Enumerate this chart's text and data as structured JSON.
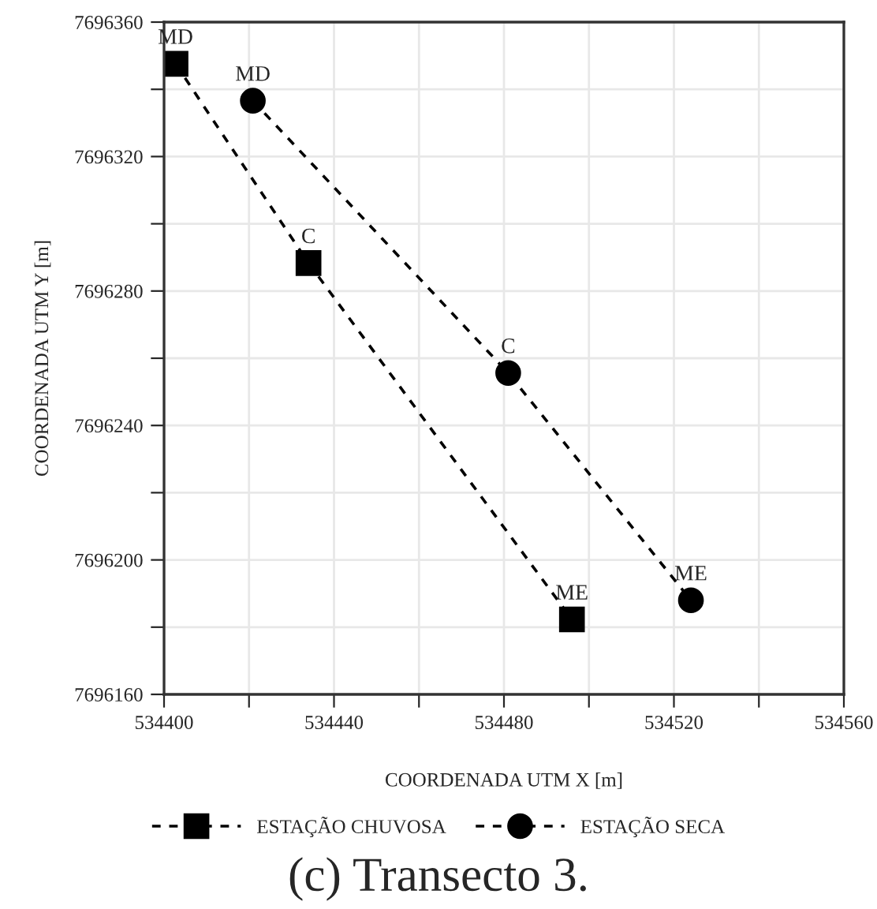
{
  "chart_data": {
    "type": "line",
    "xlabel": "COORDENADA UTM X [m]",
    "ylabel": "COORDENADA UTM Y [m]",
    "series": [
      {
        "name": "ESTAÇÃO CHUVOSA",
        "color": "#000000",
        "marker": "square",
        "line_style": "dashed",
        "x": [
          534402.7,
          534434,
          534496
        ],
        "values": [
          7696347.6,
          7696288.3,
          7696182.3
        ]
      },
      {
        "name": "ESTAÇÃO SECA",
        "color": "#000000",
        "marker": "circle",
        "line_style": "dashed",
        "x": [
          534420.9,
          534481,
          534524
        ],
        "values": [
          7696336.6,
          7696255.6,
          7696188
        ]
      }
    ],
    "xlim": [
      534400,
      534560
    ],
    "xticks": [
      534400,
      {
        "value": 534420,
        "label": null
      },
      534440,
      {
        "value": 534460,
        "label": null
      },
      534480,
      {
        "value": 534500,
        "label": null
      },
      534520,
      {
        "value": 534540,
        "label": null
      },
      534560
    ],
    "ylim": [
      7696160,
      7696360
    ],
    "yticks": [
      7696160,
      {
        "value": 7696180,
        "label": null
      },
      7696200,
      {
        "value": 7696220,
        "label": null
      },
      7696240,
      {
        "value": 7696260,
        "label": null
      },
      7696280,
      {
        "value": 7696300,
        "label": null
      },
      7696320,
      {
        "value": 7696340,
        "label": null
      },
      7696360
    ],
    "grid": true,
    "legend": "bottom",
    "annotations": [
      {
        "text": "MD",
        "x": 534402.7,
        "y": 7696347.6
      },
      {
        "text": "C",
        "x": 534434,
        "y": 7696288.3
      },
      {
        "text": "ME",
        "x": 534496,
        "y": 7696182.3
      },
      {
        "text": "MD",
        "x": 534420.9,
        "y": 7696336.6
      },
      {
        "text": "C",
        "x": 534481,
        "y": 7696255.6
      },
      {
        "text": "ME",
        "x": 534524,
        "y": 7696188
      },
      "(c) Transecto 3."
    ]
  }
}
